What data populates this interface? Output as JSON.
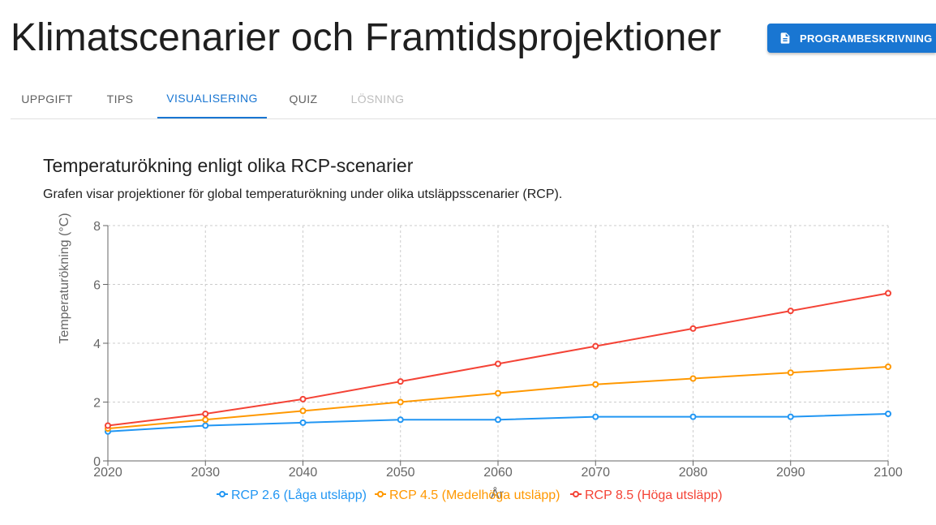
{
  "header": {
    "title": "Klimatscenarier och Framtidsprojektioner",
    "program_button_label": "PROGRAMBESKRIVNING",
    "program_button_icon": "document-icon"
  },
  "tabs": [
    {
      "label": "UPPGIFT",
      "state": "normal"
    },
    {
      "label": "TIPS",
      "state": "normal"
    },
    {
      "label": "VISUALISERING",
      "state": "active"
    },
    {
      "label": "QUIZ",
      "state": "normal"
    },
    {
      "label": "LÖSNING",
      "state": "disabled"
    }
  ],
  "visualization": {
    "title": "Temperaturökning enligt olika RCP-scenarier",
    "description": "Grafen visar projektioner för global temperaturökning under olika utsläppsscenarier (RCP)."
  },
  "colors": {
    "accent": "#1976d2",
    "rcp26": "#2196f3",
    "rcp45": "#ff9800",
    "rcp85": "#f44336"
  },
  "chart_data": {
    "type": "line",
    "title": "",
    "xlabel": "År",
    "ylabel": "Temperaturökning (°C)",
    "x": [
      2020,
      2030,
      2040,
      2050,
      2060,
      2070,
      2080,
      2090,
      2100
    ],
    "xlim": [
      2020,
      2100
    ],
    "ylim": [
      0,
      8
    ],
    "yticks": [
      0,
      2,
      4,
      6,
      8
    ],
    "grid": true,
    "legend_position": "bottom",
    "series": [
      {
        "name": "RCP 2.6 (Låga utsläpp)",
        "color": "#2196f3",
        "values": [
          1.0,
          1.2,
          1.3,
          1.4,
          1.4,
          1.5,
          1.5,
          1.5,
          1.6
        ]
      },
      {
        "name": "RCP 4.5 (Medelhöga utsläpp)",
        "color": "#ff9800",
        "values": [
          1.1,
          1.4,
          1.7,
          2.0,
          2.3,
          2.6,
          2.8,
          3.0,
          3.2
        ]
      },
      {
        "name": "RCP 8.5 (Höga utsläpp)",
        "color": "#f44336",
        "values": [
          1.2,
          1.6,
          2.1,
          2.7,
          3.3,
          3.9,
          4.5,
          5.1,
          5.7
        ]
      }
    ]
  }
}
